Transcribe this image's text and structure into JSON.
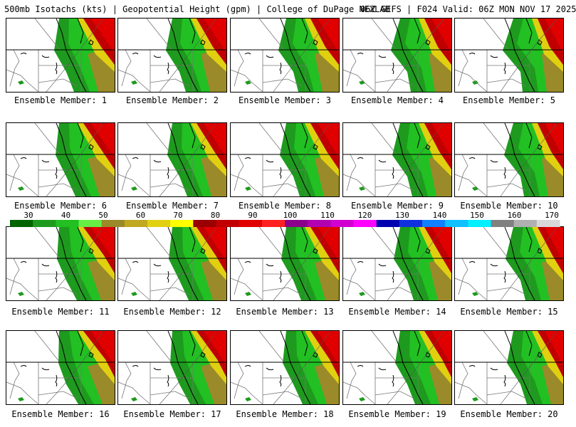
{
  "header": {
    "title_left": "500mb Isotachs (kts) | Geopotential Height (gpm) | College of DuPage NEXLAB",
    "title_right": "06Z GEFS | F024 Valid: 06Z MON NOV 17 2025"
  },
  "members": [
    "Ensemble Member: 1",
    "Ensemble Member: 2",
    "Ensemble Member: 3",
    "Ensemble Member: 4",
    "Ensemble Member: 5",
    "Ensemble Member: 6",
    "Ensemble Member: 7",
    "Ensemble Member: 8",
    "Ensemble Member: 9",
    "Ensemble Member: 10",
    "Ensemble Member: 11",
    "Ensemble Member: 12",
    "Ensemble Member: 13",
    "Ensemble Member: 14",
    "Ensemble Member: 15",
    "Ensemble Member: 16",
    "Ensemble Member: 17",
    "Ensemble Member: 18",
    "Ensemble Member: 19",
    "Ensemble Member: 20"
  ],
  "colorbar": {
    "tick_labels": [
      "30",
      "40",
      "50",
      "60",
      "70",
      "80",
      "90",
      "100",
      "110",
      "120",
      "130",
      "140",
      "150",
      "160",
      "170"
    ],
    "colors": [
      "#006400",
      "#1e9a1e",
      "#22c022",
      "#66ee44",
      "#9a8a2a",
      "#c0a820",
      "#e0d010",
      "#ffff00",
      "#9a0000",
      "#c00000",
      "#e00000",
      "#ff2020",
      "#8b008b",
      "#b000b0",
      "#d000d0",
      "#ff00ff",
      "#0000b0",
      "#1030e0",
      "#1080ff",
      "#10c0ff",
      "#00f0ff",
      "#808080",
      "#b0b0b0",
      "#d8d8d8"
    ]
  }
}
